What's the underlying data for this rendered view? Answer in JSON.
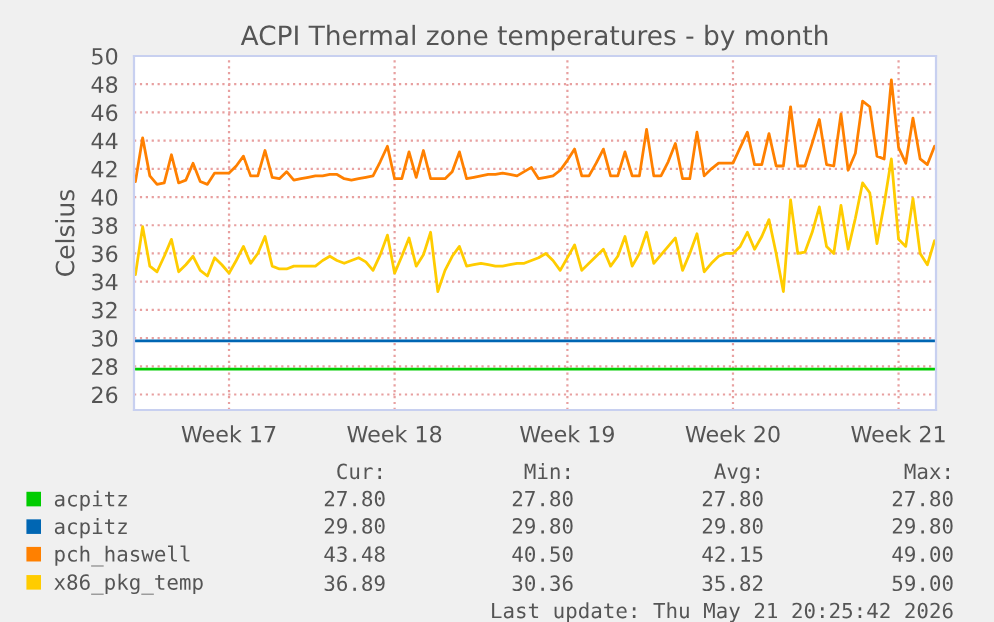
{
  "chart_data": {
    "type": "line",
    "title": "ACPI Thermal zone temperatures - by month",
    "ylabel": "Celsius",
    "categories": [
      null,
      null,
      null,
      null,
      null,
      null,
      null,
      null,
      null,
      null,
      null,
      null,
      null,
      "Week 17",
      null,
      null,
      null,
      null,
      null,
      null,
      null,
      null,
      null,
      null,
      null,
      null,
      null,
      null,
      null,
      null,
      null,
      null,
      null,
      null,
      null,
      null,
      "Week 18",
      null,
      null,
      null,
      null,
      null,
      null,
      null,
      null,
      null,
      null,
      null,
      null,
      null,
      null,
      null,
      null,
      null,
      null,
      null,
      null,
      null,
      null,
      null,
      "Week 19",
      null,
      null,
      null,
      null,
      null,
      null,
      null,
      null,
      null,
      null,
      null,
      null,
      null,
      null,
      null,
      null,
      null,
      null,
      null,
      null,
      null,
      null,
      "Week 20",
      null,
      null,
      null,
      null,
      null,
      null,
      null,
      null,
      null,
      null,
      null,
      null,
      null,
      null,
      null,
      null,
      null,
      null,
      null,
      null,
      null,
      null,
      "Week 21",
      null,
      null,
      null,
      null,
      null
    ],
    "ylim": [
      24.9,
      50
    ],
    "yticks": [
      26,
      28,
      30,
      32,
      34,
      36,
      38,
      40,
      42,
      44,
      46,
      48,
      50
    ],
    "grid": true,
    "legend": "bottom",
    "series": [
      {
        "name": "acpitz",
        "color": "#00cc00",
        "values": [
          27.8,
          27.8,
          27.8,
          27.8,
          27.8,
          27.8,
          27.8,
          27.8,
          27.8,
          27.8,
          27.8,
          27.8,
          27.8,
          27.8,
          27.8,
          27.8,
          27.8,
          27.8,
          27.8,
          27.8,
          27.8,
          27.8,
          27.8,
          27.8,
          27.8,
          27.8,
          27.8,
          27.8,
          27.8,
          27.8,
          27.8,
          27.8,
          27.8,
          27.8,
          27.8,
          27.8,
          27.8,
          27.8,
          27.8,
          27.8,
          27.8,
          27.8,
          27.8,
          27.8,
          27.8,
          27.8,
          27.8,
          27.8,
          27.8,
          27.8,
          27.8,
          27.8,
          27.8,
          27.8,
          27.8,
          27.8,
          27.8,
          27.8,
          27.8,
          27.8,
          27.8,
          27.8,
          27.8,
          27.8,
          27.8,
          27.8,
          27.8,
          27.8,
          27.8,
          27.8,
          27.8,
          27.8,
          27.8,
          27.8,
          27.8,
          27.8,
          27.8,
          27.8,
          27.8,
          27.8,
          27.8,
          27.8,
          27.8,
          27.8,
          27.8,
          27.8,
          27.8,
          27.8,
          27.8,
          27.8,
          27.8,
          27.8,
          27.8,
          27.8,
          27.8,
          27.8,
          27.8,
          27.8,
          27.8,
          27.8,
          27.8,
          27.8,
          27.8,
          27.8,
          27.8,
          27.8,
          27.8,
          27.8,
          27.8,
          27.8,
          27.8,
          27.8
        ]
      },
      {
        "name": "acpitz",
        "color": "#0066b3",
        "values": [
          29.8,
          29.8,
          29.8,
          29.8,
          29.8,
          29.8,
          29.8,
          29.8,
          29.8,
          29.8,
          29.8,
          29.8,
          29.8,
          29.8,
          29.8,
          29.8,
          29.8,
          29.8,
          29.8,
          29.8,
          29.8,
          29.8,
          29.8,
          29.8,
          29.8,
          29.8,
          29.8,
          29.8,
          29.8,
          29.8,
          29.8,
          29.8,
          29.8,
          29.8,
          29.8,
          29.8,
          29.8,
          29.8,
          29.8,
          29.8,
          29.8,
          29.8,
          29.8,
          29.8,
          29.8,
          29.8,
          29.8,
          29.8,
          29.8,
          29.8,
          29.8,
          29.8,
          29.8,
          29.8,
          29.8,
          29.8,
          29.8,
          29.8,
          29.8,
          29.8,
          29.8,
          29.8,
          29.8,
          29.8,
          29.8,
          29.8,
          29.8,
          29.8,
          29.8,
          29.8,
          29.8,
          29.8,
          29.8,
          29.8,
          29.8,
          29.8,
          29.8,
          29.8,
          29.8,
          29.8,
          29.8,
          29.8,
          29.8,
          29.8,
          29.8,
          29.8,
          29.8,
          29.8,
          29.8,
          29.8,
          29.8,
          29.8,
          29.8,
          29.8,
          29.8,
          29.8,
          29.8,
          29.8,
          29.8,
          29.8,
          29.8,
          29.8,
          29.8,
          29.8,
          29.8,
          29.8,
          29.8,
          29.8,
          29.8,
          29.8,
          29.8,
          29.8
        ]
      },
      {
        "name": "pch_haswell",
        "color": "#ff8000",
        "values": [
          41.1,
          44.2,
          41.5,
          40.9,
          41.0,
          43.0,
          41.0,
          41.2,
          42.4,
          41.1,
          40.9,
          41.7,
          41.7,
          41.7,
          42.2,
          42.9,
          41.5,
          41.5,
          43.3,
          41.4,
          41.3,
          41.8,
          41.2,
          41.3,
          41.4,
          41.5,
          41.5,
          41.6,
          41.6,
          41.3,
          41.2,
          41.3,
          41.4,
          41.5,
          42.5,
          43.6,
          41.3,
          41.3,
          43.2,
          41.4,
          43.3,
          41.3,
          41.3,
          41.3,
          41.8,
          43.2,
          41.3,
          41.4,
          41.5,
          41.6,
          41.6,
          41.7,
          41.6,
          41.5,
          41.8,
          42.1,
          41.3,
          41.4,
          41.5,
          41.9,
          42.6,
          43.4,
          41.5,
          41.5,
          42.4,
          43.4,
          41.5,
          41.5,
          43.2,
          41.5,
          41.5,
          44.8,
          41.5,
          41.5,
          42.5,
          43.8,
          41.3,
          41.3,
          44.6,
          41.5,
          42.0,
          42.4,
          42.4,
          42.4,
          43.5,
          44.6,
          42.3,
          42.3,
          44.5,
          42.2,
          42.2,
          46.4,
          42.2,
          42.2,
          43.8,
          45.5,
          42.3,
          42.2,
          45.9,
          41.9,
          43.1,
          46.8,
          46.4,
          42.9,
          42.7,
          48.3,
          43.5,
          42.4,
          45.6,
          42.7,
          42.3,
          43.6
        ]
      },
      {
        "name": "x86_pkg_temp",
        "color": "#ffcc00",
        "values": [
          34.5,
          37.9,
          35.1,
          34.7,
          35.8,
          37.0,
          34.7,
          35.2,
          35.8,
          34.8,
          34.4,
          35.7,
          35.2,
          34.6,
          35.5,
          36.5,
          35.3,
          36.0,
          37.2,
          35.1,
          34.9,
          34.9,
          35.1,
          35.1,
          35.1,
          35.1,
          35.5,
          35.8,
          35.5,
          35.3,
          35.5,
          35.7,
          35.4,
          34.8,
          35.9,
          37.3,
          34.6,
          35.8,
          37.1,
          35.1,
          35.9,
          37.5,
          33.3,
          34.8,
          35.8,
          36.5,
          35.1,
          35.2,
          35.3,
          35.2,
          35.1,
          35.1,
          35.2,
          35.3,
          35.3,
          35.5,
          35.7,
          36.0,
          35.5,
          34.8,
          35.7,
          36.6,
          34.8,
          35.3,
          35.8,
          36.3,
          35.1,
          35.8,
          37.2,
          35.1,
          36.0,
          37.5,
          35.3,
          35.9,
          36.5,
          37.1,
          34.8,
          36.0,
          37.4,
          34.7,
          35.3,
          35.8,
          36.0,
          36.0,
          36.5,
          37.5,
          36.3,
          37.2,
          38.4,
          36.0,
          33.3,
          39.8,
          36.0,
          36.1,
          37.5,
          39.3,
          36.5,
          36.0,
          39.4,
          36.3,
          38.5,
          41.0,
          40.3,
          36.7,
          39.5,
          42.7,
          37.0,
          36.5,
          39.9,
          36.0,
          35.2,
          36.9
        ]
      }
    ],
    "annotations": [
      "Cur:",
      "Min:",
      "Avg:",
      "Max:",
      "27.80",
      "27.80",
      "27.80",
      "27.80",
      "29.80",
      "29.80",
      "29.80",
      "29.80",
      "43.48",
      "40.50",
      "42.15",
      "49.00",
      "36.89",
      "30.36",
      "35.82",
      "59.00",
      "Last update: Thu May 21 20:25:42 2026"
    ]
  }
}
